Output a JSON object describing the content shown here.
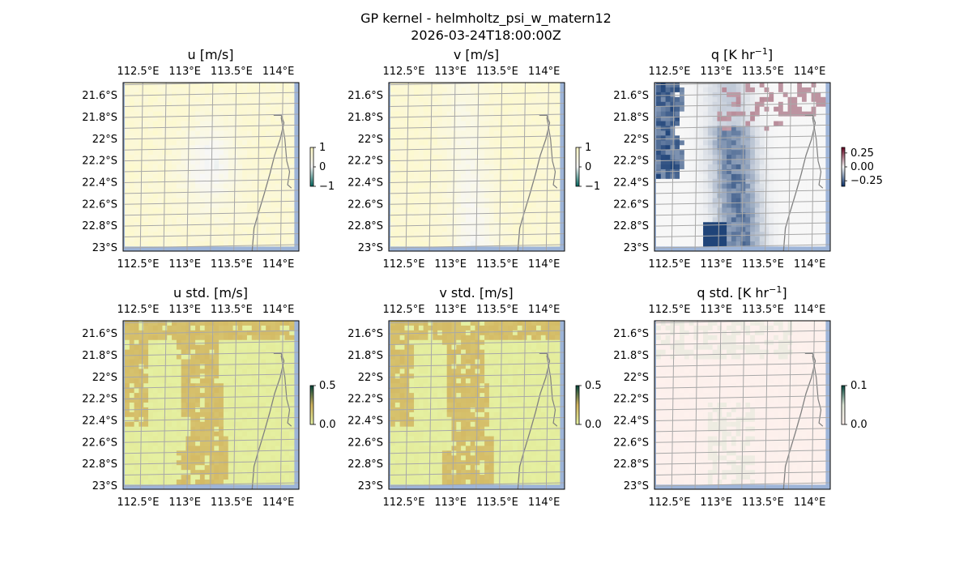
{
  "figure": {
    "title_line1": "GP kernel - helmholtz_psi_w_matern12",
    "title_line2": "2026-03-24T18:00:00Z"
  },
  "chart_data": [
    {
      "type": "heatmap",
      "title": "u [m/s]",
      "variable": "u",
      "x_ticks": [
        "112.5°E",
        "113°E",
        "113.5°E",
        "114°E"
      ],
      "y_ticks": [
        "21.6°S",
        "21.8°S",
        "22°S",
        "22.2°S",
        "22.4°S",
        "22.6°S",
        "22.8°S",
        "23°S"
      ],
      "colorbar": {
        "ticks": [
          "1",
          "0",
          "−1"
        ],
        "range": [
          -1,
          1
        ],
        "colormap": "diverging teal-white-yellow",
        "colors": [
          "#01665e",
          "#f7f7f7",
          "#fef9c5"
        ]
      },
      "field": "mostly pale yellow (positive, ~0.2–0.5) with a grey-green weak/negative patch in the centre-south",
      "grid": true
    },
    {
      "type": "heatmap",
      "title": "v [m/s]",
      "variable": "v",
      "x_ticks": [
        "112.5°E",
        "113°E",
        "113.5°E",
        "114°E"
      ],
      "y_ticks": [
        "21.6°S",
        "21.8°S",
        "22°S",
        "22.2°S",
        "22.4°S",
        "22.6°S",
        "22.8°S",
        "23°S"
      ],
      "colorbar": {
        "ticks": [
          "1",
          "0",
          "−1"
        ],
        "range": [
          -1,
          1
        ],
        "colormap": "diverging teal-white-yellow",
        "colors": [
          "#01665e",
          "#f7f7f7",
          "#fef9c5"
        ]
      },
      "field": "pale yellow background with a grey-teal band running north to south",
      "grid": true
    },
    {
      "type": "heatmap",
      "title": "q [K hr ⁻¹]",
      "title_unit": "K hr",
      "title_exp": "−1",
      "variable": "q",
      "x_ticks": [
        "112.5°E",
        "113°E",
        "113.5°E",
        "114°E"
      ],
      "y_ticks": [
        "21.6°S",
        "21.8°S",
        "22°S",
        "22.2°S",
        "22.4°S",
        "22.6°S",
        "22.8°S",
        "23°S"
      ],
      "colorbar": {
        "ticks": [
          "0.25",
          "0.00",
          "−0.25"
        ],
        "range": [
          -0.35,
          0.35
        ],
        "colormap": "RdBu_r",
        "colors": [
          "#08306b",
          "#f7f7f7",
          "#67001f"
        ]
      },
      "field": "strong negative (deep blue) along the west edge and a blue band in the south-centre, light red patches in the north-east",
      "grid": true
    },
    {
      "type": "heatmap",
      "title": "u std. [m/s]",
      "variable": "u_std",
      "x_ticks": [
        "112.5°E",
        "113°E",
        "113.5°E",
        "114°E"
      ],
      "y_ticks": [
        "21.6°S",
        "21.8°S",
        "22°S",
        "22.2°S",
        "22.4°S",
        "22.6°S",
        "22.8°S",
        "23°S"
      ],
      "colorbar": {
        "ticks": [
          "0.5",
          "0.0"
        ],
        "range": [
          0,
          0.5
        ],
        "colormap": "yellow-olive-teal",
        "colors": [
          "#e6f3a4",
          "#d2b55f",
          "#00443a"
        ]
      },
      "field": "light yellow-green (~0.05) with ochre (~0.2) regions along the north edge, west edge and a central north-south band",
      "grid": true
    },
    {
      "type": "heatmap",
      "title": "v std. [m/s]",
      "variable": "v_std",
      "x_ticks": [
        "112.5°E",
        "113°E",
        "113.5°E",
        "114°E"
      ],
      "y_ticks": [
        "21.6°S",
        "21.8°S",
        "22°S",
        "22.2°S",
        "22.4°S",
        "22.6°S",
        "22.8°S",
        "23°S"
      ],
      "colorbar": {
        "ticks": [
          "0.5",
          "0.0"
        ],
        "range": [
          0,
          0.5
        ],
        "colormap": "yellow-olive-teal",
        "colors": [
          "#e6f3a4",
          "#d2b55f",
          "#00443a"
        ]
      },
      "field": "light yellow-green (~0.05) with ochre (~0.2) regions along the north edge, west edge and a central north-south band",
      "grid": true
    },
    {
      "type": "heatmap",
      "title": "q std. [K hr ⁻¹]",
      "title_unit": "K hr",
      "title_exp": "−1",
      "variable": "q_std",
      "x_ticks": [
        "112.5°E",
        "113°E",
        "113.5°E",
        "114°E"
      ],
      "y_ticks": [
        "21.6°S",
        "21.8°S",
        "22°S",
        "22.2°S",
        "22.4°S",
        "22.6°S",
        "22.8°S",
        "23°S"
      ],
      "colorbar": {
        "ticks": [
          "0.1",
          "0.0"
        ],
        "range": [
          0,
          0.1
        ],
        "colormap": "pink-white-green",
        "colors": [
          "#fff1ee",
          "#e0e8d8",
          "#00443a"
        ]
      },
      "field": "near-white pink background with faint grey-green patches in the north and centre-south",
      "grid": true
    }
  ]
}
